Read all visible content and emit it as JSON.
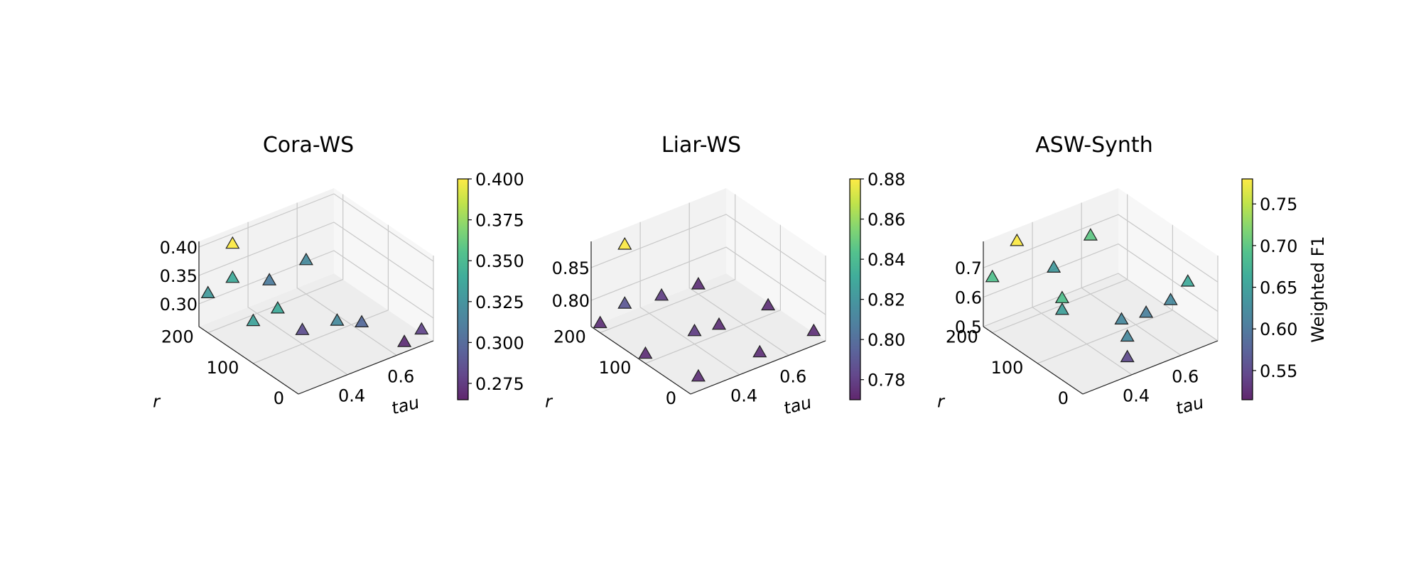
{
  "colormap": [
    "#440154",
    "#482878",
    "#3e4989",
    "#31688e",
    "#26828e",
    "#1f9e89",
    "#35b779",
    "#6ece58",
    "#b5de2b",
    "#fde725"
  ],
  "chart_data": [
    {
      "type": "scatter3d",
      "title": "Cora-WS",
      "xlabel": "tau",
      "ylabel": "r",
      "zlabel": "",
      "marker": "triangle",
      "xlim": [
        0.2,
        0.75
      ],
      "ylim": [
        0,
        220
      ],
      "zlim": [
        0.26,
        0.41
      ],
      "xticks": [
        0.4,
        0.6
      ],
      "yticks": [
        0,
        100,
        200
      ],
      "zticks": [
        0.3,
        0.35,
        0.4
      ],
      "xtick_labels": [
        "0.4",
        "0.6"
      ],
      "ytick_labels": [
        "0",
        "100",
        "200"
      ],
      "ztick_labels": [
        "0.30",
        "0.35",
        "0.40"
      ],
      "colorbar": {
        "min": 0.265,
        "max": 0.4,
        "ticks": [
          "0.400",
          "0.375",
          "0.350",
          "0.325",
          "0.300",
          "0.275"
        ],
        "tick_values": [
          0.4,
          0.375,
          0.35,
          0.325,
          0.3,
          0.275
        ],
        "label": ""
      },
      "points": [
        {
          "tau": 0.2,
          "r": 200,
          "f1": 0.33
        },
        {
          "tau": 0.3,
          "r": 200,
          "f1": 0.34
        },
        {
          "tau": 0.3,
          "r": 200,
          "f1": 0.4
        },
        {
          "tau": 0.45,
          "r": 200,
          "f1": 0.31
        },
        {
          "tau": 0.6,
          "r": 200,
          "f1": 0.32
        },
        {
          "tau": 0.2,
          "r": 100,
          "f1": 0.335
        },
        {
          "tau": 0.3,
          "r": 100,
          "f1": 0.34
        },
        {
          "tau": 0.4,
          "r": 100,
          "f1": 0.285
        },
        {
          "tau": 0.45,
          "r": 50,
          "f1": 0.32
        },
        {
          "tau": 0.55,
          "r": 50,
          "f1": 0.3
        },
        {
          "tau": 0.65,
          "r": 10,
          "f1": 0.27
        },
        {
          "tau": 0.72,
          "r": 10,
          "f1": 0.28
        }
      ]
    },
    {
      "type": "scatter3d",
      "title": "Liar-WS",
      "xlabel": "tau",
      "ylabel": "r",
      "zlabel": "",
      "marker": "triangle",
      "xlim": [
        0.2,
        0.75
      ],
      "ylim": [
        0,
        220
      ],
      "zlim": [
        0.76,
        0.89
      ],
      "xticks": [
        0.4,
        0.6
      ],
      "yticks": [
        0,
        100,
        200
      ],
      "zticks": [
        0.8,
        0.85
      ],
      "xtick_labels": [
        "0.4",
        "0.6"
      ],
      "ytick_labels": [
        "0",
        "100",
        "200"
      ],
      "ztick_labels": [
        "0.80",
        "0.85"
      ],
      "colorbar": {
        "min": 0.77,
        "max": 0.88,
        "ticks": [
          "0.88",
          "0.86",
          "0.84",
          "0.82",
          "0.80",
          "0.78"
        ],
        "tick_values": [
          0.88,
          0.86,
          0.84,
          0.82,
          0.8,
          0.78
        ],
        "label": ""
      },
      "points": [
        {
          "tau": 0.2,
          "r": 200,
          "f1": 0.775
        },
        {
          "tau": 0.3,
          "r": 200,
          "f1": 0.88
        },
        {
          "tau": 0.3,
          "r": 200,
          "f1": 0.79
        },
        {
          "tau": 0.45,
          "r": 200,
          "f1": 0.78
        },
        {
          "tau": 0.6,
          "r": 200,
          "f1": 0.775
        },
        {
          "tau": 0.2,
          "r": 100,
          "f1": 0.775
        },
        {
          "tau": 0.4,
          "r": 100,
          "f1": 0.78
        },
        {
          "tau": 0.5,
          "r": 100,
          "f1": 0.775
        },
        {
          "tau": 0.7,
          "r": 100,
          "f1": 0.775
        },
        {
          "tau": 0.25,
          "r": 10,
          "f1": 0.775
        },
        {
          "tau": 0.5,
          "r": 10,
          "f1": 0.775
        },
        {
          "tau": 0.72,
          "r": 10,
          "f1": 0.775
        }
      ]
    },
    {
      "type": "scatter3d",
      "title": "ASW-Synth",
      "xlabel": "tau",
      "ylabel": "r",
      "zlabel": "",
      "marker": "triangle",
      "xlim": [
        0.2,
        0.75
      ],
      "ylim": [
        0,
        220
      ],
      "zlim": [
        0.5,
        0.79
      ],
      "xticks": [
        0.4,
        0.6
      ],
      "yticks": [
        0,
        100,
        200
      ],
      "zticks": [
        0.5,
        0.6,
        0.7
      ],
      "xtick_labels": [
        "0.4",
        "0.6"
      ],
      "ytick_labels": [
        "0",
        "100",
        "200"
      ],
      "ztick_labels": [
        "0.5",
        "0.6",
        "0.7"
      ],
      "colorbar": {
        "min": 0.515,
        "max": 0.78,
        "ticks": [
          "0.75",
          "0.70",
          "0.65",
          "0.60",
          "0.55"
        ],
        "tick_values": [
          0.75,
          0.7,
          0.65,
          0.6,
          0.55
        ],
        "label": "Weighted F1"
      },
      "points": [
        {
          "tau": 0.2,
          "r": 200,
          "f1": 0.69
        },
        {
          "tau": 0.3,
          "r": 200,
          "f1": 0.78
        },
        {
          "tau": 0.45,
          "r": 200,
          "f1": 0.64
        },
        {
          "tau": 0.6,
          "r": 200,
          "f1": 0.7
        },
        {
          "tau": 0.3,
          "r": 100,
          "f1": 0.69
        },
        {
          "tau": 0.3,
          "r": 100,
          "f1": 0.65
        },
        {
          "tau": 0.45,
          "r": 50,
          "f1": 0.62
        },
        {
          "tau": 0.55,
          "r": 50,
          "f1": 0.61
        },
        {
          "tau": 0.65,
          "r": 50,
          "f1": 0.62
        },
        {
          "tau": 0.72,
          "r": 50,
          "f1": 0.66
        },
        {
          "tau": 0.4,
          "r": 10,
          "f1": 0.55
        },
        {
          "tau": 0.4,
          "r": 10,
          "f1": 0.62
        }
      ]
    }
  ]
}
